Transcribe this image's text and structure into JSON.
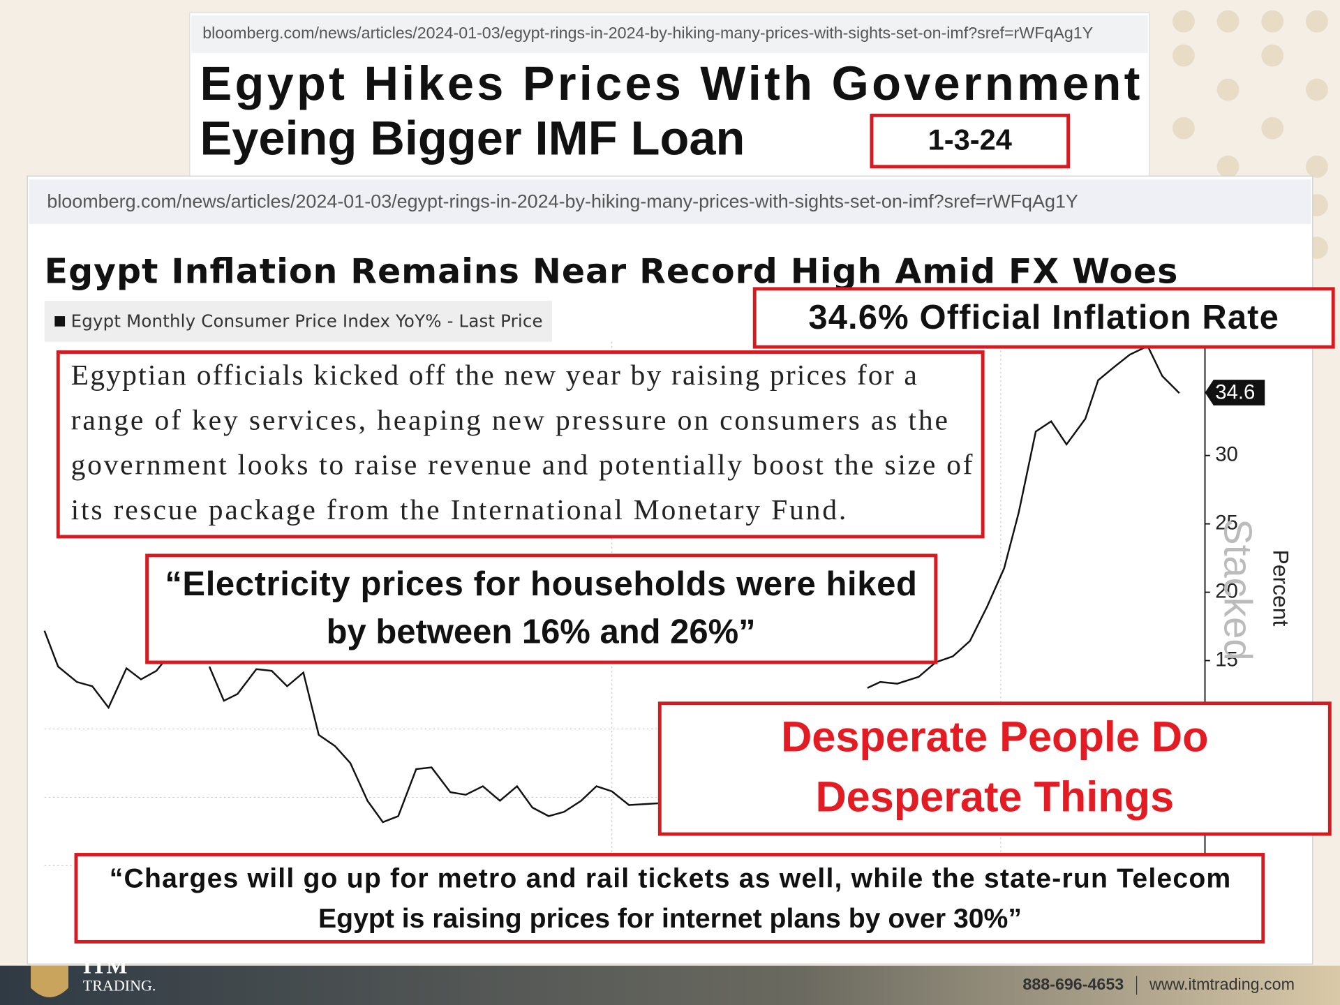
{
  "top_article": {
    "url": "bloomberg.com/news/articles/2024-01-03/egypt-rings-in-2024-by-hiking-many-prices-with-sights-set-on-imf?sref=rWFqAg1Y",
    "headline": [
      "Egypt Hikes Prices With Government",
      "Eyeing Bigger IMF Loan"
    ],
    "date": "1-3-24"
  },
  "main_article": {
    "url": "bloomberg.com/news/articles/2024-01-03/egypt-rings-in-2024-by-hiking-many-prices-with-sights-set-on-imf?sref=rWFqAg1Y",
    "chart_title": "Egypt Inflation Remains Near Record High Amid FX Woes",
    "legend": "Egypt Monthly Consumer Price Index YoY% - Last Price",
    "yticks": [
      15,
      20,
      25,
      30
    ],
    "last_price": 34.6,
    "y_axis_label": "Percent",
    "watermark": "Stacked"
  },
  "callouts": {
    "official_rate": "34.6% Official Inflation Rate",
    "excerpt": [
      "Egyptian officials kicked off the new year by raising prices for a",
      "range of key services, heaping new pressure on consumers as the",
      "government looks to raise revenue and potentially boost the size of",
      "its rescue package from the International Monetary Fund."
    ],
    "electricity_quote": [
      "“Electricity prices for households were hiked",
      "by between 16% and 26%”"
    ],
    "desperate": [
      "Desperate People Do",
      "Desperate Things"
    ],
    "charges_quote": [
      "“Charges will go up for metro and rail tickets as well, while the state-run Telecom",
      "Egypt is raising prices for internet plans by over 30%”"
    ]
  },
  "footer": {
    "logo": "ITM",
    "logo_sub": "TRADING.",
    "phone": "888-696-4653",
    "website": "www.itmtrading.com"
  }
}
